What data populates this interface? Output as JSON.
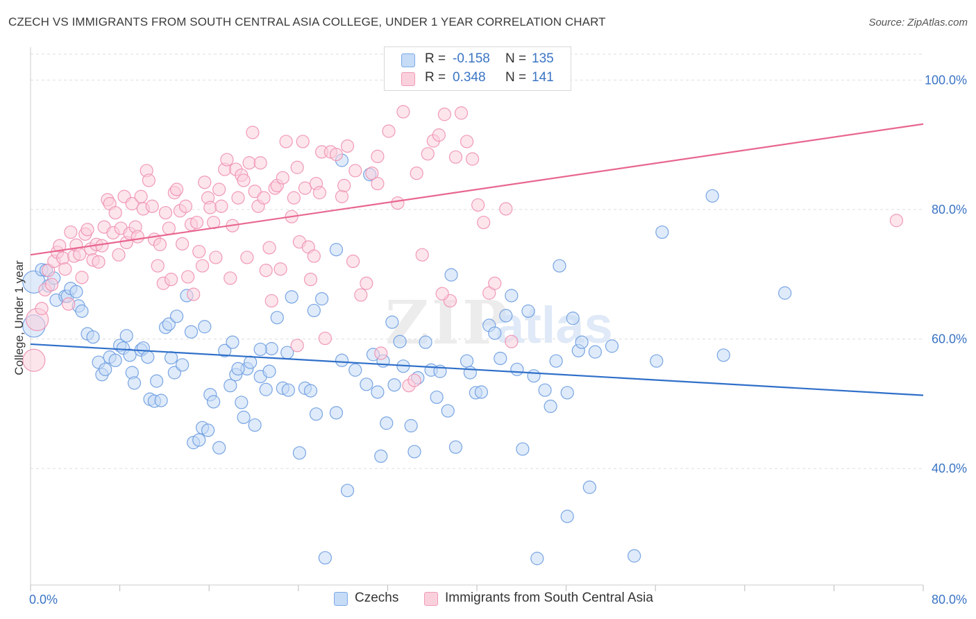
{
  "title": "CZECH VS IMMIGRANTS FROM SOUTH CENTRAL ASIA COLLEGE, UNDER 1 YEAR CORRELATION CHART",
  "source": "Source: ZipAtlas.com",
  "watermark": {
    "zip": "ZIP",
    "atlas": "atlas"
  },
  "legend_top": [
    {
      "r_label": "R =",
      "r_value": "-0.158",
      "n_label": "N =",
      "n_value": "135",
      "color": "#7aaae8",
      "fill": "#c5dbf6"
    },
    {
      "r_label": "R =",
      "r_value": "0.348",
      "n_label": "N =",
      "n_value": "141",
      "color": "#f19ab5",
      "fill": "#fbd0dd"
    }
  ],
  "legend_bottom": [
    {
      "label": "Czechs",
      "color": "#7aaae8",
      "fill": "#c5dbf6"
    },
    {
      "label": "Immigrants from South Central Asia",
      "color": "#f19ab5",
      "fill": "#fbd0dd"
    }
  ],
  "chart_data": {
    "type": "scatter",
    "title": "CZECH VS IMMIGRANTS FROM SOUTH CENTRAL ASIA COLLEGE, UNDER 1 YEAR CORRELATION CHART",
    "xlabel": "",
    "ylabel": "College, Under 1 year",
    "xlim": [
      0,
      80
    ],
    "ylim": [
      22,
      104
    ],
    "x_tick_labels": [
      "0.0%",
      "80.0%"
    ],
    "y_ticks": [
      40,
      60,
      80,
      100
    ],
    "y_tick_labels": [
      "40.0%",
      "60.0%",
      "80.0%",
      "100.0%"
    ],
    "grid": "horizontal dashed",
    "legend_position": "top-center",
    "series": [
      {
        "name": "Czechs",
        "color": "#6a9be0",
        "fill": "#c5dbf6",
        "trend": {
          "x0": 0,
          "y0": 59.2,
          "x1": 80,
          "y1": 51.3
        },
        "points": [
          [
            0.3,
            62.0
          ],
          [
            0.3,
            68.8
          ],
          [
            1.0,
            70.7
          ],
          [
            1.4,
            70.6
          ],
          [
            1.6,
            68.2
          ],
          [
            2.1,
            69.4
          ],
          [
            2.3,
            66.0
          ],
          [
            3.1,
            66.6
          ],
          [
            3.3,
            66.6
          ],
          [
            3.6,
            67.8
          ],
          [
            4.1,
            67.3
          ],
          [
            4.3,
            65.1
          ],
          [
            4.6,
            64.3
          ],
          [
            5.1,
            60.8
          ],
          [
            5.6,
            60.3
          ],
          [
            6.1,
            56.4
          ],
          [
            6.4,
            54.5
          ],
          [
            6.7,
            55.3
          ],
          [
            7.1,
            57.2
          ],
          [
            7.6,
            56.7
          ],
          [
            8.0,
            59.0
          ],
          [
            8.3,
            58.6
          ],
          [
            8.6,
            60.5
          ],
          [
            8.9,
            57.5
          ],
          [
            9.1,
            54.8
          ],
          [
            9.3,
            53.2
          ],
          [
            9.9,
            58.3
          ],
          [
            10.1,
            58.6
          ],
          [
            10.5,
            57.2
          ],
          [
            10.7,
            50.7
          ],
          [
            11.1,
            50.4
          ],
          [
            11.3,
            53.5
          ],
          [
            11.7,
            50.5
          ],
          [
            12.1,
            61.8
          ],
          [
            12.4,
            62.3
          ],
          [
            12.6,
            57.1
          ],
          [
            12.9,
            54.8
          ],
          [
            13.1,
            63.5
          ],
          [
            13.6,
            56.0
          ],
          [
            14.0,
            66.7
          ],
          [
            14.4,
            61.1
          ],
          [
            14.6,
            44.0
          ],
          [
            15.1,
            44.4
          ],
          [
            15.4,
            46.3
          ],
          [
            15.6,
            61.9
          ],
          [
            15.9,
            45.9
          ],
          [
            16.1,
            51.4
          ],
          [
            16.4,
            50.3
          ],
          [
            16.9,
            43.2
          ],
          [
            17.4,
            58.2
          ],
          [
            17.9,
            52.8
          ],
          [
            18.1,
            59.5
          ],
          [
            18.4,
            54.5
          ],
          [
            18.9,
            50.2
          ],
          [
            19.1,
            47.9
          ],
          [
            19.4,
            55.4
          ],
          [
            19.7,
            56.4
          ],
          [
            20.1,
            46.7
          ],
          [
            20.6,
            54.2
          ],
          [
            21.1,
            52.2
          ],
          [
            21.4,
            55.0
          ],
          [
            21.6,
            58.5
          ],
          [
            22.1,
            63.3
          ],
          [
            22.6,
            52.4
          ],
          [
            23.0,
            57.9
          ],
          [
            23.4,
            66.5
          ],
          [
            24.1,
            42.4
          ],
          [
            24.6,
            52.4
          ],
          [
            25.1,
            52.0
          ],
          [
            25.4,
            64.4
          ],
          [
            25.6,
            48.4
          ],
          [
            26.1,
            66.2
          ],
          [
            26.4,
            26.2
          ],
          [
            27.4,
            73.8
          ],
          [
            27.9,
            56.7
          ],
          [
            28.4,
            36.6
          ],
          [
            29.1,
            55.2
          ],
          [
            30.1,
            53.0
          ],
          [
            30.4,
            85.4
          ],
          [
            30.7,
            57.6
          ],
          [
            31.1,
            51.8
          ],
          [
            31.4,
            41.9
          ],
          [
            31.9,
            47.0
          ],
          [
            32.4,
            62.6
          ],
          [
            32.6,
            52.9
          ],
          [
            33.1,
            59.6
          ],
          [
            33.4,
            55.8
          ],
          [
            34.1,
            46.6
          ],
          [
            34.4,
            42.6
          ],
          [
            34.7,
            54.0
          ],
          [
            35.4,
            59.5
          ],
          [
            35.9,
            55.2
          ],
          [
            36.4,
            51.0
          ],
          [
            36.7,
            55.0
          ],
          [
            37.4,
            48.9
          ],
          [
            37.7,
            69.9
          ],
          [
            38.1,
            43.3
          ],
          [
            39.1,
            56.6
          ],
          [
            39.4,
            54.8
          ],
          [
            39.9,
            51.7
          ],
          [
            40.4,
            51.8
          ],
          [
            41.1,
            62.1
          ],
          [
            41.6,
            60.9
          ],
          [
            42.1,
            57.0
          ],
          [
            42.6,
            63.6
          ],
          [
            43.1,
            66.7
          ],
          [
            43.6,
            55.3
          ],
          [
            44.1,
            43.0
          ],
          [
            44.6,
            64.3
          ],
          [
            45.1,
            54.3
          ],
          [
            45.4,
            26.1
          ],
          [
            46.1,
            52.1
          ],
          [
            46.6,
            49.6
          ],
          [
            47.1,
            56.6
          ],
          [
            47.4,
            71.3
          ],
          [
            48.1,
            51.7
          ],
          [
            48.6,
            63.2
          ],
          [
            49.1,
            58.2
          ],
          [
            49.4,
            59.5
          ],
          [
            50.1,
            37.1
          ],
          [
            50.6,
            58.0
          ],
          [
            52.1,
            58.9
          ],
          [
            54.1,
            26.5
          ],
          [
            56.1,
            56.6
          ],
          [
            56.6,
            76.5
          ],
          [
            61.1,
            82.1
          ],
          [
            62.1,
            57.5
          ],
          [
            67.6,
            67.1
          ],
          [
            27.9,
            87.6
          ],
          [
            48.1,
            32.6
          ],
          [
            18.6,
            55.4
          ],
          [
            20.6,
            58.4
          ],
          [
            23.1,
            52.1
          ],
          [
            27.4,
            48.6
          ],
          [
            31.6,
            56.6
          ]
        ]
      },
      {
        "name": "Immigrants from South Central Asia",
        "color": "#ee8fb0",
        "fill": "#fbd0dd",
        "trend": {
          "x0": 0,
          "y0": 73.0,
          "x1": 80,
          "y1": 93.2
        },
        "points": [
          [
            0.3,
            56.7
          ],
          [
            0.6,
            63.0
          ],
          [
            1.0,
            64.7
          ],
          [
            1.3,
            67.6
          ],
          [
            1.6,
            70.6
          ],
          [
            1.9,
            68.4
          ],
          [
            2.1,
            72.0
          ],
          [
            2.4,
            73.4
          ],
          [
            2.6,
            74.4
          ],
          [
            2.9,
            72.5
          ],
          [
            3.1,
            70.8
          ],
          [
            3.4,
            65.4
          ],
          [
            3.6,
            76.5
          ],
          [
            3.9,
            72.8
          ],
          [
            4.1,
            74.5
          ],
          [
            4.4,
            73.1
          ],
          [
            4.6,
            69.5
          ],
          [
            4.9,
            76.2
          ],
          [
            5.1,
            76.9
          ],
          [
            5.4,
            73.9
          ],
          [
            5.6,
            72.2
          ],
          [
            5.9,
            74.6
          ],
          [
            6.1,
            71.9
          ],
          [
            6.4,
            74.4
          ],
          [
            6.6,
            77.3
          ],
          [
            6.9,
            81.5
          ],
          [
            7.1,
            80.9
          ],
          [
            7.4,
            76.4
          ],
          [
            7.6,
            79.5
          ],
          [
            7.9,
            73.0
          ],
          [
            8.1,
            77.1
          ],
          [
            8.4,
            82.0
          ],
          [
            8.6,
            74.9
          ],
          [
            8.9,
            76.3
          ],
          [
            9.1,
            80.9
          ],
          [
            9.4,
            77.3
          ],
          [
            9.6,
            75.8
          ],
          [
            9.9,
            82.0
          ],
          [
            10.1,
            80.1
          ],
          [
            10.4,
            86.0
          ],
          [
            10.6,
            84.5
          ],
          [
            10.9,
            80.5
          ],
          [
            11.1,
            75.4
          ],
          [
            11.4,
            71.3
          ],
          [
            11.6,
            74.6
          ],
          [
            11.9,
            68.6
          ],
          [
            12.1,
            79.5
          ],
          [
            12.4,
            77.1
          ],
          [
            12.6,
            69.2
          ],
          [
            12.9,
            82.6
          ],
          [
            13.1,
            83.1
          ],
          [
            13.4,
            79.8
          ],
          [
            13.6,
            74.7
          ],
          [
            13.9,
            80.5
          ],
          [
            14.1,
            69.6
          ],
          [
            14.4,
            77.7
          ],
          [
            14.6,
            66.9
          ],
          [
            14.9,
            78.0
          ],
          [
            15.1,
            73.5
          ],
          [
            15.4,
            71.3
          ],
          [
            15.6,
            84.2
          ],
          [
            15.9,
            81.8
          ],
          [
            16.1,
            80.3
          ],
          [
            16.4,
            78.0
          ],
          [
            16.6,
            72.6
          ],
          [
            16.9,
            83.1
          ],
          [
            17.1,
            80.5
          ],
          [
            17.4,
            86.2
          ],
          [
            17.6,
            87.7
          ],
          [
            17.9,
            69.4
          ],
          [
            18.1,
            77.5
          ],
          [
            18.4,
            86.2
          ],
          [
            18.6,
            81.8
          ],
          [
            18.9,
            85.3
          ],
          [
            19.1,
            84.5
          ],
          [
            19.4,
            72.6
          ],
          [
            19.6,
            87.2
          ],
          [
            19.9,
            91.9
          ],
          [
            20.1,
            82.8
          ],
          [
            20.4,
            80.5
          ],
          [
            20.6,
            87.2
          ],
          [
            20.9,
            81.8
          ],
          [
            21.1,
            70.6
          ],
          [
            21.4,
            74.1
          ],
          [
            21.6,
            65.9
          ],
          [
            21.9,
            83.3
          ],
          [
            22.1,
            83.7
          ],
          [
            22.6,
            84.9
          ],
          [
            22.9,
            90.5
          ],
          [
            23.4,
            78.9
          ],
          [
            23.6,
            81.8
          ],
          [
            23.9,
            86.5
          ],
          [
            24.1,
            75.0
          ],
          [
            24.6,
            83.3
          ],
          [
            24.9,
            74.2
          ],
          [
            25.1,
            69.2
          ],
          [
            25.4,
            72.8
          ],
          [
            25.6,
            84.0
          ],
          [
            25.9,
            82.6
          ],
          [
            26.1,
            88.9
          ],
          [
            26.4,
            60.1
          ],
          [
            26.9,
            88.9
          ],
          [
            27.4,
            88.5
          ],
          [
            27.9,
            82.0
          ],
          [
            28.1,
            83.7
          ],
          [
            28.4,
            89.8
          ],
          [
            29.1,
            86.0
          ],
          [
            29.6,
            66.8
          ],
          [
            30.1,
            68.6
          ],
          [
            30.6,
            85.6
          ],
          [
            31.1,
            84.0
          ],
          [
            31.4,
            57.8
          ],
          [
            32.1,
            92.1
          ],
          [
            32.9,
            81.0
          ],
          [
            33.4,
            95.1
          ],
          [
            33.9,
            52.8
          ],
          [
            34.6,
            85.6
          ],
          [
            35.1,
            73.0
          ],
          [
            35.6,
            88.6
          ],
          [
            36.1,
            90.6
          ],
          [
            36.6,
            91.5
          ],
          [
            37.1,
            94.7
          ],
          [
            37.6,
            65.9
          ],
          [
            38.1,
            88.1
          ],
          [
            38.6,
            94.9
          ],
          [
            39.1,
            90.5
          ],
          [
            39.6,
            87.8
          ],
          [
            40.1,
            80.7
          ],
          [
            40.6,
            78.0
          ],
          [
            41.1,
            67.1
          ],
          [
            41.6,
            68.6
          ],
          [
            42.6,
            80.1
          ],
          [
            43.1,
            59.6
          ],
          [
            77.6,
            78.3
          ],
          [
            34.4,
            53.6
          ],
          [
            23.9,
            59.0
          ],
          [
            28.9,
            72.0
          ],
          [
            36.9,
            67.0
          ],
          [
            31.1,
            88.2
          ],
          [
            24.4,
            90.5
          ],
          [
            22.4,
            70.8
          ]
        ]
      }
    ]
  }
}
